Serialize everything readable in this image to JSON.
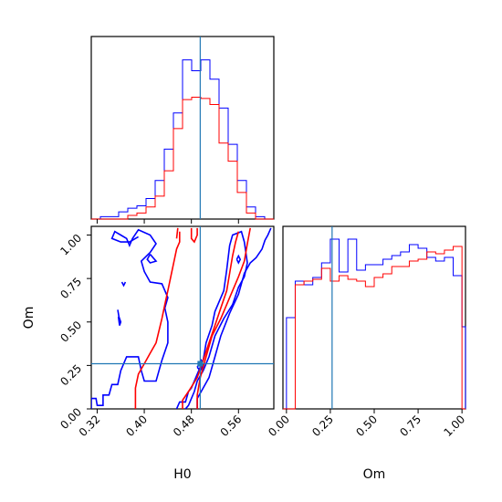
{
  "chart_data": [
    {
      "type": "histogram",
      "panel": "H0 marginal",
      "xlim": [
        0.31,
        0.62
      ],
      "x_ticks": [
        "0.32",
        "0.40",
        "0.48",
        "0.56"
      ],
      "y_ticks": [],
      "truth_x": 0.495,
      "bin_edges": [
        0.31,
        0.3255,
        0.341,
        0.3565,
        0.372,
        0.3875,
        0.403,
        0.4185,
        0.434,
        0.4495,
        0.465,
        0.4805,
        0.496,
        0.5115,
        0.527,
        0.5425,
        0.558,
        0.5735,
        0.589,
        0.6045,
        0.62
      ],
      "series": [
        {
          "color": "#0000ff",
          "values": [
            0,
            2,
            2,
            6,
            9,
            11,
            17,
            32,
            58,
            88,
            132,
            123,
            132,
            116,
            92,
            62,
            32,
            10,
            2,
            0
          ]
        },
        {
          "color": "#ff0000",
          "values": [
            0,
            0,
            0,
            0,
            3,
            5,
            10,
            19,
            40,
            75,
            99,
            101,
            100,
            95,
            63,
            48,
            22,
            5,
            0,
            0
          ]
        }
      ]
    },
    {
      "type": "contour",
      "panel": "H0 vs Om joint",
      "xlabel": "H0",
      "ylabel": "Om",
      "xlim": [
        0.31,
        0.62
      ],
      "ylim": [
        0.0,
        1.05
      ],
      "x_ticks": [
        "0.32",
        "0.40",
        "0.48",
        "0.56"
      ],
      "y_ticks": [
        "0.00",
        "0.25",
        "0.50",
        "0.75",
        "1.00"
      ],
      "truth": [
        0.495,
        0.26
      ],
      "series": [
        {
          "color": "#0000ff",
          "contours": [
            [
              [
                0.31,
                0.0
              ],
              [
                0.31,
                0.06
              ],
              [
                0.318,
                0.06
              ],
              [
                0.32,
                0.02
              ],
              [
                0.33,
                0.02
              ],
              [
                0.33,
                0.08
              ],
              [
                0.34,
                0.08
              ],
              [
                0.345,
                0.14
              ],
              [
                0.355,
                0.14
              ],
              [
                0.36,
                0.22
              ],
              [
                0.37,
                0.3
              ],
              [
                0.39,
                0.3
              ],
              [
                0.395,
                0.22
              ],
              [
                0.4,
                0.16
              ],
              [
                0.42,
                0.16
              ],
              [
                0.43,
                0.28
              ],
              [
                0.44,
                0.38
              ],
              [
                0.44,
                0.5
              ],
              [
                0.435,
                0.58
              ],
              [
                0.44,
                0.64
              ],
              [
                0.43,
                0.72
              ],
              [
                0.41,
                0.73
              ],
              [
                0.4,
                0.79
              ],
              [
                0.395,
                0.85
              ],
              [
                0.41,
                0.9
              ],
              [
                0.42,
                0.95
              ],
              [
                0.41,
                1.0
              ],
              [
                0.39,
                1.03
              ],
              [
                0.38,
                0.98
              ],
              [
                0.375,
                0.94
              ],
              [
                0.37,
                0.98
              ],
              [
                0.36,
                1.0
              ],
              [
                0.35,
                1.02
              ],
              [
                0.345,
                0.98
              ],
              [
                0.36,
                0.96
              ],
              [
                0.375,
                0.96
              ],
              [
                0.39,
                0.99
              ]
            ],
            [
              [
                0.41,
                0.89
              ],
              [
                0.405,
                0.86
              ],
              [
                0.41,
                0.84
              ],
              [
                0.42,
                0.85
              ],
              [
                0.415,
                0.87
              ],
              [
                0.41,
                0.89
              ]
            ],
            [
              [
                0.355,
                0.57
              ],
              [
                0.357,
                0.53
              ],
              [
                0.36,
                0.5
              ],
              [
                0.358,
                0.48
              ],
              [
                0.356,
                0.53
              ]
            ],
            [
              [
                0.362,
                0.73
              ],
              [
                0.365,
                0.71
              ],
              [
                0.368,
                0.73
              ]
            ],
            [
              [
                0.49,
                0.0
              ],
              [
                0.49,
                0.06
              ],
              [
                0.5,
                0.12
              ],
              [
                0.51,
                0.18
              ],
              [
                0.52,
                0.3
              ],
              [
                0.53,
                0.42
              ],
              [
                0.545,
                0.55
              ],
              [
                0.56,
                0.66
              ],
              [
                0.57,
                0.78
              ],
              [
                0.58,
                0.84
              ],
              [
                0.59,
                0.87
              ],
              [
                0.6,
                0.92
              ],
              [
                0.605,
                0.97
              ],
              [
                0.61,
                1.0
              ],
              [
                0.615,
                1.04
              ]
            ],
            [
              [
                0.455,
                0.0
              ],
              [
                0.46,
                0.04
              ],
              [
                0.47,
                0.04
              ],
              [
                0.475,
                0.1
              ],
              [
                0.48,
                0.12
              ],
              [
                0.485,
                0.16
              ],
              [
                0.49,
                0.2
              ],
              [
                0.5,
                0.28
              ],
              [
                0.505,
                0.38
              ],
              [
                0.515,
                0.48
              ],
              [
                0.52,
                0.56
              ],
              [
                0.535,
                0.68
              ],
              [
                0.54,
                0.8
              ],
              [
                0.545,
                0.94
              ],
              [
                0.55,
                1.0
              ],
              [
                0.565,
                1.02
              ],
              [
                0.57,
                0.96
              ],
              [
                0.575,
                0.84
              ],
              [
                0.57,
                0.76
              ],
              [
                0.56,
                0.7
              ],
              [
                0.55,
                0.6
              ],
              [
                0.535,
                0.52
              ],
              [
                0.52,
                0.42
              ],
              [
                0.51,
                0.3
              ],
              [
                0.5,
                0.22
              ],
              [
                0.49,
                0.16
              ],
              [
                0.485,
                0.1
              ],
              [
                0.48,
                0.06
              ],
              [
                0.475,
                0.02
              ],
              [
                0.47,
                0.0
              ]
            ],
            [
              [
                0.557,
                0.86
              ],
              [
                0.56,
                0.84
              ],
              [
                0.563,
                0.86
              ],
              [
                0.56,
                0.88
              ],
              [
                0.557,
                0.86
              ]
            ],
            [
              [
                0.49,
                0.24
              ],
              [
                0.495,
                0.22
              ],
              [
                0.5,
                0.25
              ],
              [
                0.497,
                0.28
              ],
              [
                0.49,
                0.24
              ]
            ]
          ]
        },
        {
          "color": "#ff0000",
          "contours": [
            [
              [
                0.385,
                0.0
              ],
              [
                0.385,
                0.12
              ],
              [
                0.39,
                0.2
              ],
              [
                0.4,
                0.26
              ],
              [
                0.41,
                0.32
              ],
              [
                0.42,
                0.38
              ],
              [
                0.425,
                0.45
              ],
              [
                0.43,
                0.52
              ],
              [
                0.435,
                0.6
              ],
              [
                0.44,
                0.68
              ],
              [
                0.445,
                0.76
              ],
              [
                0.45,
                0.84
              ],
              [
                0.455,
                0.92
              ],
              [
                0.46,
                0.96
              ],
              [
                0.46,
                1.02
              ]
            ],
            [
              [
                0.465,
                0.0
              ],
              [
                0.465,
                0.05
              ],
              [
                0.475,
                0.1
              ],
              [
                0.49,
                0.18
              ],
              [
                0.5,
                0.28
              ],
              [
                0.51,
                0.38
              ],
              [
                0.52,
                0.48
              ],
              [
                0.53,
                0.58
              ],
              [
                0.54,
                0.68
              ],
              [
                0.545,
                0.78
              ],
              [
                0.55,
                0.88
              ],
              [
                0.555,
                0.96
              ],
              [
                0.56,
                1.02
              ]
            ],
            [
              [
                0.58,
                1.04
              ],
              [
                0.575,
                0.95
              ],
              [
                0.57,
                0.85
              ],
              [
                0.56,
                0.76
              ],
              [
                0.545,
                0.64
              ],
              [
                0.53,
                0.52
              ],
              [
                0.515,
                0.42
              ],
              [
                0.505,
                0.3
              ],
              [
                0.495,
                0.18
              ],
              [
                0.49,
                0.08
              ],
              [
                0.49,
                0.0
              ]
            ],
            [
              [
                0.48,
                1.04
              ],
              [
                0.48,
                0.98
              ],
              [
                0.485,
                0.96
              ],
              [
                0.49,
                1.0
              ],
              [
                0.49,
                1.04
              ]
            ],
            [
              [
                0.457,
                1.04
              ],
              [
                0.455,
                0.98
              ]
            ]
          ]
        }
      ]
    },
    {
      "type": "histogram",
      "panel": "Om marginal",
      "xlabel": "Om",
      "xlim": [
        -0.02,
        1.02
      ],
      "x_ticks": [
        "0.00",
        "0.25",
        "0.50",
        "0.75",
        "1.00"
      ],
      "y_ticks": [],
      "truth_x": 0.26,
      "bin_edges": [
        -0.02,
        0.0,
        0.05,
        0.1,
        0.15,
        0.2,
        0.25,
        0.3,
        0.35,
        0.4,
        0.45,
        0.5,
        0.55,
        0.6,
        0.65,
        0.7,
        0.75,
        0.8,
        0.85,
        0.9,
        0.95,
        1.0,
        1.02
      ],
      "series": [
        {
          "color": "#0000ff",
          "values": [
            0,
            50,
            70,
            68,
            72,
            80,
            93,
            75,
            93,
            76,
            79,
            79,
            82,
            84,
            86,
            90,
            88,
            83,
            81,
            83,
            73,
            45
          ]
        },
        {
          "color": "#ff0000",
          "values": [
            0,
            0,
            68,
            70,
            71,
            77,
            70,
            73,
            71,
            70,
            67,
            72,
            74,
            78,
            78,
            81,
            82,
            86,
            85,
            87,
            89,
            0
          ]
        }
      ]
    }
  ]
}
